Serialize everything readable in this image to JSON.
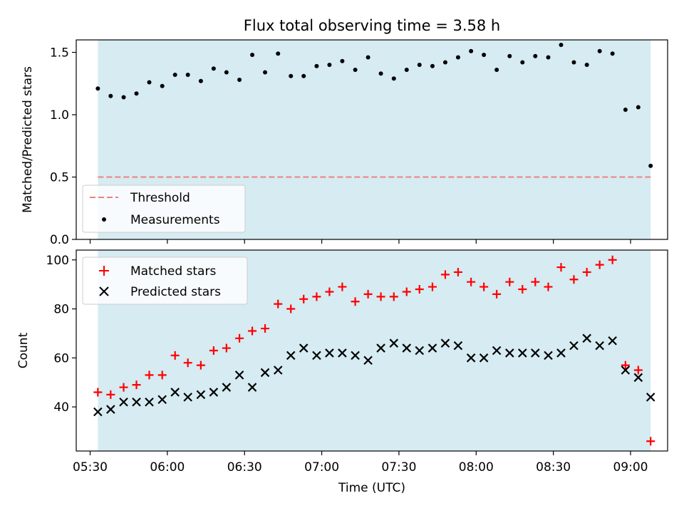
{
  "chart_data": [
    {
      "type": "scatter",
      "title": "Flux total observing time = 3.58 h",
      "ylabel": "Matched/Predicted stars",
      "xlim": [
        5.41,
        9.24
      ],
      "ylim": [
        0.0,
        1.6
      ],
      "yticks": [
        0.0,
        0.5,
        1.0,
        1.5
      ],
      "grid": false,
      "legend_position": "lower-left",
      "shaded_span": {
        "start": 5.55,
        "end": 9.13,
        "color": "#add8e6"
      },
      "threshold": {
        "name": "Threshold",
        "value": 0.5,
        "color": "#f08080",
        "style": "dashed"
      },
      "series": [
        {
          "name": "Measurements",
          "marker": "dot",
          "color": "#000000",
          "x": [
            5.55,
            5.633,
            5.717,
            5.8,
            5.883,
            5.967,
            6.05,
            6.133,
            6.217,
            6.3,
            6.383,
            6.467,
            6.55,
            6.633,
            6.717,
            6.8,
            6.883,
            6.967,
            7.05,
            7.133,
            7.217,
            7.3,
            7.383,
            7.467,
            7.55,
            7.633,
            7.717,
            7.8,
            7.883,
            7.967,
            8.05,
            8.133,
            8.217,
            8.3,
            8.383,
            8.467,
            8.55,
            8.633,
            8.717,
            8.8,
            8.883,
            8.967,
            9.05,
            9.13
          ],
          "values": [
            1.21,
            1.15,
            1.14,
            1.17,
            1.26,
            1.23,
            1.32,
            1.32,
            1.27,
            1.37,
            1.34,
            1.28,
            1.48,
            1.34,
            1.49,
            1.31,
            1.31,
            1.39,
            1.4,
            1.43,
            1.36,
            1.46,
            1.33,
            1.29,
            1.36,
            1.4,
            1.39,
            1.42,
            1.46,
            1.51,
            1.48,
            1.36,
            1.47,
            1.42,
            1.47,
            1.46,
            1.56,
            1.42,
            1.4,
            1.51,
            1.49,
            1.04,
            1.06,
            0.59
          ]
        }
      ]
    },
    {
      "type": "scatter",
      "xlabel": "Time (UTC)",
      "ylabel": "Count",
      "xlim": [
        5.41,
        9.24
      ],
      "ylim": [
        22,
        104
      ],
      "yticks": [
        40,
        60,
        80,
        100
      ],
      "xticks": [
        "05:30",
        "06:00",
        "06:30",
        "07:00",
        "07:30",
        "08:00",
        "08:30",
        "09:00"
      ],
      "grid": false,
      "legend_position": "upper-left",
      "shaded_span": {
        "start": 5.55,
        "end": 9.13,
        "color": "#add8e6"
      },
      "x": [
        5.55,
        5.633,
        5.717,
        5.8,
        5.883,
        5.967,
        6.05,
        6.133,
        6.217,
        6.3,
        6.383,
        6.467,
        6.55,
        6.633,
        6.717,
        6.8,
        6.883,
        6.967,
        7.05,
        7.133,
        7.217,
        7.3,
        7.383,
        7.467,
        7.55,
        7.633,
        7.717,
        7.8,
        7.883,
        7.967,
        8.05,
        8.133,
        8.217,
        8.3,
        8.383,
        8.467,
        8.55,
        8.633,
        8.717,
        8.8,
        8.883,
        8.967,
        9.05,
        9.13
      ],
      "series": [
        {
          "name": "Matched stars",
          "marker": "plus",
          "color": "#ff0000",
          "values": [
            46,
            45,
            48,
            49,
            53,
            53,
            61,
            58,
            57,
            63,
            64,
            68,
            71,
            72,
            82,
            80,
            84,
            85,
            87,
            89,
            83,
            86,
            85,
            85,
            87,
            88,
            89,
            94,
            95,
            91,
            89,
            86,
            91,
            88,
            91,
            89,
            97,
            92,
            95,
            98,
            100,
            57,
            55,
            26
          ]
        },
        {
          "name": "Predicted stars",
          "marker": "x",
          "color": "#000000",
          "values": [
            38,
            39,
            42,
            42,
            42,
            43,
            46,
            44,
            45,
            46,
            48,
            53,
            48,
            54,
            55,
            61,
            64,
            61,
            62,
            62,
            61,
            59,
            64,
            66,
            64,
            63,
            64,
            66,
            65,
            60,
            60,
            63,
            62,
            62,
            62,
            61,
            62,
            65,
            68,
            65,
            67,
            55,
            52,
            44
          ]
        }
      ]
    }
  ]
}
